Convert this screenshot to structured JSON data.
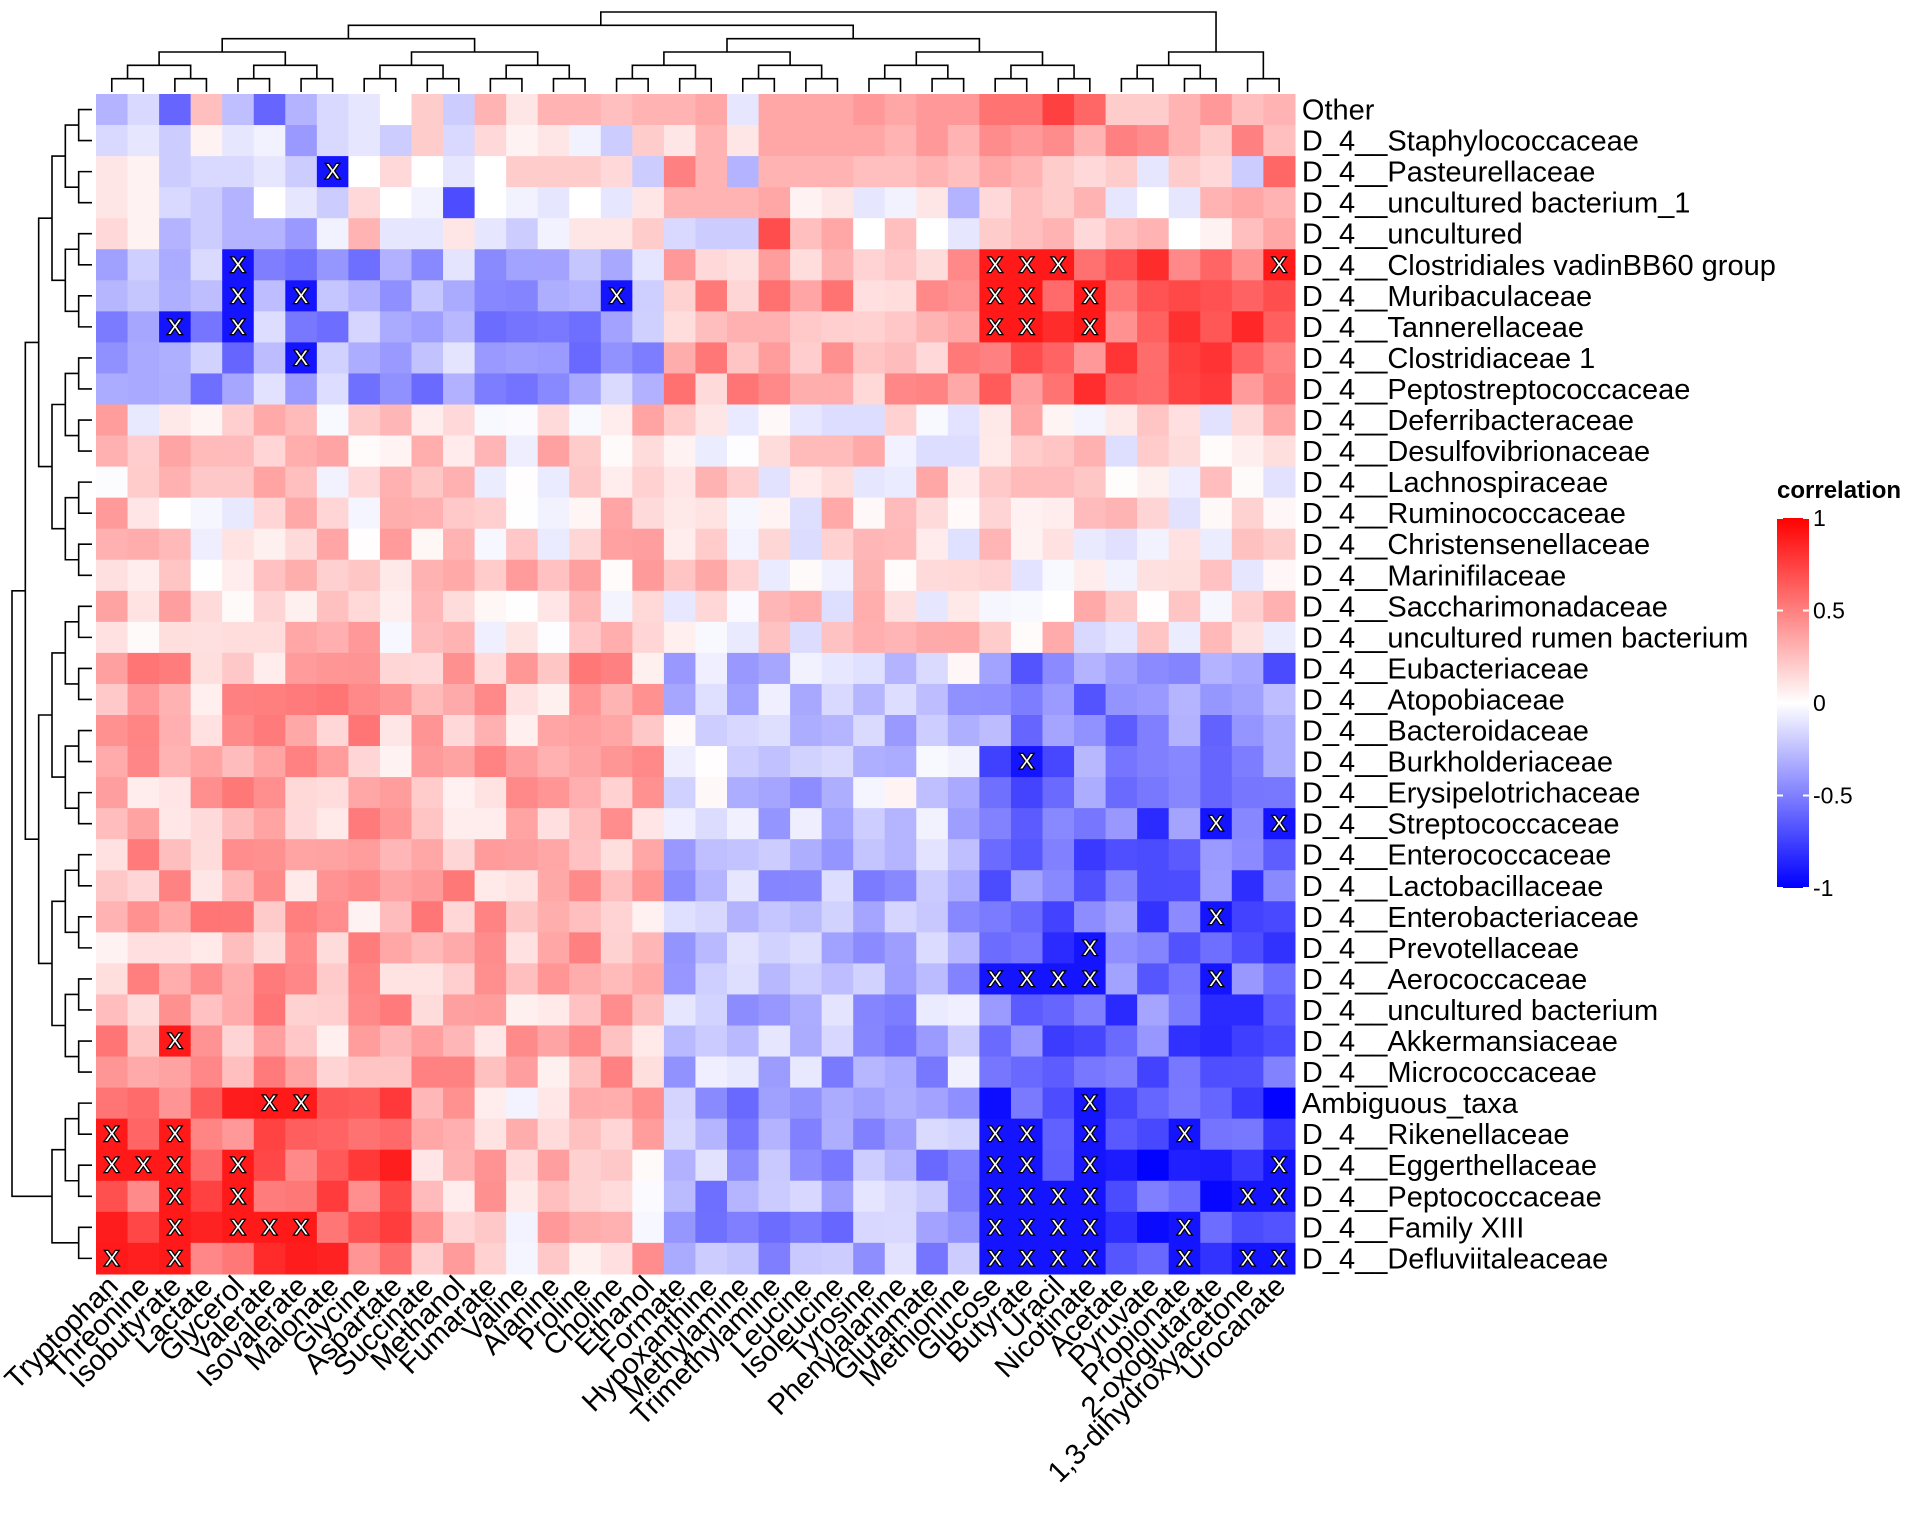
{
  "chart_data": {
    "type": "heatmap",
    "legend_title": "correlation",
    "legend_ticks": [
      1,
      0.5,
      0,
      -0.5,
      -1
    ],
    "legend_tick_labels": [
      "1",
      "0.5",
      "0",
      "-0.5",
      "-1"
    ],
    "color_scale": {
      "low": "#0000ff",
      "mid": "#ffffff",
      "high": "#ff0000",
      "range": [
        -1,
        1
      ]
    },
    "rows": [
      "Other",
      "D_4__Staphylococcaceae",
      "D_4__Pasteurellaceae",
      "D_4__uncultured bacterium_1",
      "D_4__uncultured",
      "D_4__Clostridiales vadinBB60 group",
      "D_4__Muribaculaceae",
      "D_4__Tannerellaceae",
      "D_4__Clostridiaceae 1",
      "D_4__Peptostreptococcaceae",
      "D_4__Deferribacteraceae",
      "D_4__Desulfovibrionaceae",
      "D_4__Lachnospiraceae",
      "D_4__Ruminococcaceae",
      "D_4__Christensenellaceae",
      "D_4__Marinifilaceae",
      "D_4__Saccharimonadaceae",
      "D_4__uncultured rumen bacterium",
      "D_4__Eubacteriaceae",
      "D_4__Atopobiaceae",
      "D_4__Bacteroidaceae",
      "D_4__Burkholderiaceae",
      "D_4__Erysipelotrichaceae",
      "D_4__Streptococcaceae",
      "D_4__Enterococcaceae",
      "D_4__Lactobacillaceae",
      "D_4__Enterobacteriaceae",
      "D_4__Prevotellaceae",
      "D_4__Aerococcaceae",
      "D_4__uncultured bacterium",
      "D_4__Akkermansiaceae",
      "D_4__Micrococcaceae",
      "Ambiguous_taxa",
      "D_4__Rikenellaceae",
      "D_4__Eggerthellaceae",
      "D_4__Peptococcaceae",
      "D_4__Family XIII",
      "D_4__Defluviitaleaceae"
    ],
    "columns": [
      "Tryptophan",
      "Threonine",
      "Isobutyrate",
      "Lactate",
      "Glycerol",
      "Valerate",
      "Isovalerate",
      "Malonate",
      "Glycine",
      "Aspartate",
      "Succinate",
      "Methanol",
      "Fumarate",
      "Valine",
      "Alanine",
      "Proline",
      "Choline",
      "Ethanol",
      "Formate",
      "Hypoxanthine",
      "Methylamine",
      "Trimethylamine",
      "Leucine",
      "Isoleucine",
      "Tyrosine",
      "Phenylalanine",
      "Glutamate",
      "Methionine",
      "Glucose",
      "Butyrate",
      "Uracil",
      "Nicotinate",
      "Acetate",
      "Pyruvate",
      "Propionate",
      "2-oxoglutarate",
      "1,3-dihydroxyacetone",
      "Urocanate"
    ],
    "row_group_values": [
      [
        -0.3,
        -0.15,
        -0.6,
        0.25,
        -0.25,
        -0.6,
        -0.3,
        -0.15,
        -0.1,
        0.0,
        0.2,
        -0.2,
        0.3,
        0.1,
        0.3,
        0.3,
        0.25,
        0.3,
        0.3,
        0.35,
        -0.1,
        0.35,
        0.35,
        0.35,
        0.4,
        0.35,
        0.4,
        0.4,
        0.55,
        0.55,
        0.75,
        0.6,
        0.2,
        0.2,
        0.3,
        0.4,
        0.25,
        0.3
      ],
      [
        -0.15,
        -0.1,
        -0.2,
        0.05,
        -0.1,
        -0.05,
        -0.4,
        -0.15,
        -0.1,
        -0.2,
        0.2,
        -0.15,
        0.15,
        0.05,
        0.1,
        -0.05,
        -0.2,
        0.2,
        0.1,
        0.3,
        0.1,
        0.35,
        0.35,
        0.35,
        0.35,
        0.3,
        0.4,
        0.3,
        0.45,
        0.4,
        0.45,
        0.3,
        0.5,
        0.45,
        0.3,
        0.2,
        0.5,
        0.25
      ],
      [
        0.1,
        0.05,
        -0.2,
        -0.15,
        -0.15,
        -0.1,
        -0.2,
        -0.65,
        0.0,
        0.15,
        0.0,
        -0.1,
        0.0,
        0.2,
        0.2,
        0.2,
        0.15,
        -0.2,
        0.5,
        0.3,
        -0.3,
        0.3,
        0.3,
        0.3,
        0.25,
        0.25,
        0.3,
        0.25,
        0.35,
        0.3,
        0.2,
        0.15,
        0.2,
        -0.1,
        0.2,
        0.15,
        -0.2,
        0.6
      ],
      [
        0.1,
        0.05,
        -0.15,
        -0.2,
        -0.3,
        0.0,
        -0.1,
        -0.2,
        0.15,
        0.0,
        -0.05,
        -0.7,
        0.0,
        -0.05,
        -0.1,
        0.0,
        -0.1,
        0.1,
        0.3,
        0.3,
        0.3,
        0.35,
        0.05,
        0.1,
        -0.1,
        -0.05,
        0.1,
        -0.3,
        0.15,
        0.25,
        0.2,
        0.3,
        -0.1,
        0.0,
        -0.1,
        0.3,
        0.35,
        0.3
      ],
      [
        0.15,
        0.05,
        -0.3,
        -0.2,
        -0.3,
        -0.3,
        -0.4,
        -0.05,
        0.3,
        -0.1,
        -0.1,
        0.1,
        -0.1,
        -0.2,
        -0.05,
        0.1,
        0.1,
        0.2,
        -0.15,
        -0.2,
        -0.2,
        0.7,
        0.25,
        0.35,
        0.0,
        0.25,
        0.0,
        -0.1,
        0.2,
        0.25,
        0.3,
        0.15,
        0.25,
        0.3,
        0.0,
        0.05,
        0.25,
        0.35
      ]
    ],
    "row_group_note": "",
    "significant_marks": [
      [
        "D_4__Pasteurellaceae",
        "Malonate"
      ],
      [
        "D_4__Clostridiales vadinBB60 group",
        "Glycerol"
      ],
      [
        "D_4__Clostridiales vadinBB60 group",
        "Glucose"
      ],
      [
        "D_4__Clostridiales vadinBB60 group",
        "Butyrate"
      ],
      [
        "D_4__Clostridiales vadinBB60 group",
        "Uracil"
      ],
      [
        "D_4__Clostridiales vadinBB60 group",
        "Urocanate"
      ],
      [
        "D_4__Muribaculaceae",
        "Glycerol"
      ],
      [
        "D_4__Muribaculaceae",
        "Isovalerate"
      ],
      [
        "D_4__Muribaculaceae",
        "Choline"
      ],
      [
        "D_4__Muribaculaceae",
        "Glucose"
      ],
      [
        "D_4__Muribaculaceae",
        "Butyrate"
      ],
      [
        "D_4__Muribaculaceae",
        "Nicotinate"
      ],
      [
        "D_4__Tannerellaceae",
        "Isobutyrate"
      ],
      [
        "D_4__Tannerellaceae",
        "Glycerol"
      ],
      [
        "D_4__Tannerellaceae",
        "Glucose"
      ],
      [
        "D_4__Tannerellaceae",
        "Butyrate"
      ],
      [
        "D_4__Tannerellaceae",
        "Nicotinate"
      ],
      [
        "D_4__Clostridiaceae 1",
        "Isovalerate"
      ],
      [
        "D_4__Burkholderiaceae",
        "Butyrate"
      ],
      [
        "D_4__Streptococcaceae",
        "2-oxoglutarate"
      ],
      [
        "D_4__Streptococcaceae",
        "Urocanate"
      ],
      [
        "D_4__Enterobacteriaceae",
        "2-oxoglutarate"
      ],
      [
        "D_4__Prevotellaceae",
        "Nicotinate"
      ],
      [
        "D_4__Aerococcaceae",
        "Glucose"
      ],
      [
        "D_4__Aerococcaceae",
        "Butyrate"
      ],
      [
        "D_4__Aerococcaceae",
        "Uracil"
      ],
      [
        "D_4__Aerococcaceae",
        "Nicotinate"
      ],
      [
        "D_4__Aerococcaceae",
        "2-oxoglutarate"
      ],
      [
        "D_4__Akkermansiaceae",
        "Isobutyrate"
      ],
      [
        "Ambiguous_taxa",
        "Valerate"
      ],
      [
        "Ambiguous_taxa",
        "Isovalerate"
      ],
      [
        "Ambiguous_taxa",
        "Nicotinate"
      ],
      [
        "D_4__Rikenellaceae",
        "Tryptophan"
      ],
      [
        "D_4__Rikenellaceae",
        "Isobutyrate"
      ],
      [
        "D_4__Rikenellaceae",
        "Glucose"
      ],
      [
        "D_4__Rikenellaceae",
        "Butyrate"
      ],
      [
        "D_4__Rikenellaceae",
        "Nicotinate"
      ],
      [
        "D_4__Rikenellaceae",
        "Propionate"
      ],
      [
        "D_4__Eggerthellaceae",
        "Tryptophan"
      ],
      [
        "D_4__Eggerthellaceae",
        "Threonine"
      ],
      [
        "D_4__Eggerthellaceae",
        "Isobutyrate"
      ],
      [
        "D_4__Eggerthellaceae",
        "Glycerol"
      ],
      [
        "D_4__Eggerthellaceae",
        "Glucose"
      ],
      [
        "D_4__Eggerthellaceae",
        "Butyrate"
      ],
      [
        "D_4__Eggerthellaceae",
        "Nicotinate"
      ],
      [
        "D_4__Eggerthellaceae",
        "Urocanate"
      ],
      [
        "D_4__Peptococcaceae",
        "Isobutyrate"
      ],
      [
        "D_4__Peptococcaceae",
        "Glycerol"
      ],
      [
        "D_4__Peptococcaceae",
        "Glucose"
      ],
      [
        "D_4__Peptococcaceae",
        "Butyrate"
      ],
      [
        "D_4__Peptococcaceae",
        "Uracil"
      ],
      [
        "D_4__Peptococcaceae",
        "Nicotinate"
      ],
      [
        "D_4__Peptococcaceae",
        "1,3-dihydroxyacetone"
      ],
      [
        "D_4__Peptococcaceae",
        "Urocanate"
      ],
      [
        "D_4__Family XIII",
        "Isobutyrate"
      ],
      [
        "D_4__Family XIII",
        "Glycerol"
      ],
      [
        "D_4__Family XIII",
        "Valerate"
      ],
      [
        "D_4__Family XIII",
        "Isovalerate"
      ],
      [
        "D_4__Family XIII",
        "Glucose"
      ],
      [
        "D_4__Family XIII",
        "Butyrate"
      ],
      [
        "D_4__Family XIII",
        "Uracil"
      ],
      [
        "D_4__Family XIII",
        "Nicotinate"
      ],
      [
        "D_4__Family XIII",
        "Propionate"
      ],
      [
        "D_4__Defluviitaleaceae",
        "Tryptophan"
      ],
      [
        "D_4__Defluviitaleaceae",
        "Isobutyrate"
      ],
      [
        "D_4__Defluviitaleaceae",
        "Glucose"
      ],
      [
        "D_4__Defluviitaleaceae",
        "Butyrate"
      ],
      [
        "D_4__Defluviitaleaceae",
        "Uracil"
      ],
      [
        "D_4__Defluviitaleaceae",
        "Nicotinate"
      ],
      [
        "D_4__Defluviitaleaceae",
        "Propionate"
      ],
      [
        "D_4__Defluviitaleaceae",
        "1,3-dihydroxyacetone"
      ],
      [
        "D_4__Defluviitaleaceae",
        "Urocanate"
      ]
    ],
    "mark_symbol": "X"
  }
}
